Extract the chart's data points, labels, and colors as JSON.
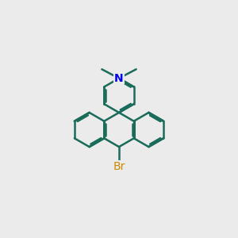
{
  "background_color": "#ebebeb",
  "bond_color": "#1a6b5a",
  "N_color": "#0000ee",
  "Br_color": "#cc8800",
  "bond_width": 1.8,
  "figsize": [
    3.0,
    3.0
  ],
  "dpi": 100
}
